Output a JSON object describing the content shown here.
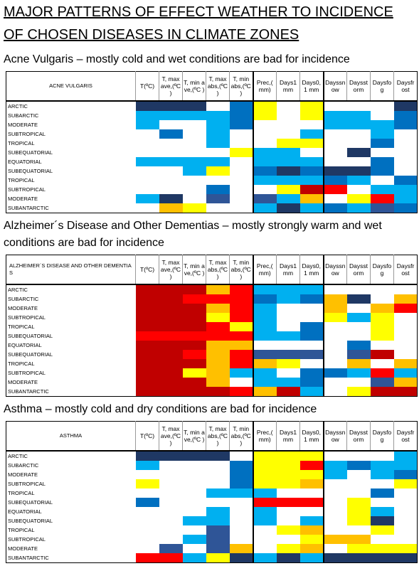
{
  "header": {
    "title_lines": [
      "MAJOR PATTERNS OF EFFECT WEATHER TO INCIDENCE",
      "OF CHOSEN DISEASES IN CLIMATE ZONES"
    ]
  },
  "columns": [
    "T(ºC)",
    "T, max ave,(ºC )",
    "T, min ave,(ºC )",
    "T, max abs,(ºC )",
    "T, min abs,(ºC )",
    "Prec,( mm)",
    "Days1 mm",
    "Days0, 1 mm",
    "Dayssn ow",
    "Daysst orm",
    "Daysfo g",
    "Daysfr ost"
  ],
  "palette": {
    "W": "#ffffff",
    "D": "#1f3864",
    "N": "#2f5597",
    "B": "#0070c0",
    "L": "#00b0f0",
    "Y": "#ffff00",
    "O": "#ffc000",
    "R": "#ff0000",
    "K": "#c00000"
  },
  "sections": [
    {
      "subtitle": "Acne Vulgaris – mostly cold and wet conditions are bad for incidence",
      "table": {
        "corner": "ACNE VULGARIS",
        "rows": [
          {
            "label": "ARCTIC",
            "cells": "DDDWBYWYWWWD"
          },
          {
            "label": "SUBARCTIC",
            "cells": "LLLLBYWYLLWB"
          },
          {
            "label": "MODERATE",
            "cells": "LWWLBWWWLLLB"
          },
          {
            "label": "SUBTROPICAL",
            "cells": "WBWLWWWLWWLW"
          },
          {
            "label": "TROPICAL",
            "cells": "WWWLWWYYWWBW"
          },
          {
            "label": "SUBEQUATORIAL",
            "cells": "WWWWYLLWWDWW"
          },
          {
            "label": "EQUATORIAL",
            "cells": "LLLLWLLLWWBW"
          },
          {
            "label": "SUBEQUATORIAL",
            "cells": "WWLYWBDBDDBW"
          },
          {
            "label": "TROPICAL",
            "cells": "WWWWWLLLBLWB"
          },
          {
            "label": "SUBTROPICAL",
            "cells": "WWWBWWYKRWLL"
          },
          {
            "label": "MODERATE",
            "cells": "LDWNWNLOWYRL"
          },
          {
            "label": "SUBANTARCTIC",
            "cells": "WOYWWLDLBLNB"
          }
        ]
      }
    },
    {
      "subtitle": "Alzheimer´s Disease and Other Dementias – mostly strongly warm and wet conditions are bad for incidence",
      "table": {
        "corner": "ALZHEIMER´S DISEASE AND OTHER DEMENTIAS",
        "rows": [
          {
            "label": "ARCTIC",
            "cells": "KKKORLLLWWWW"
          },
          {
            "label": "SUBARCTIC",
            "cells": "KKRRRBLBODWO"
          },
          {
            "label": "MODERATE",
            "cells": "KKKORLWWOWOR"
          },
          {
            "label": "SUBTROPICAL",
            "cells": "KKKYRLWWYLYW"
          },
          {
            "label": "TROPICAL",
            "cells": "KKKRYLWBWWYW"
          },
          {
            "label": "SUBEQUATORIAL",
            "cells": "RRRRRLLBWWYW"
          },
          {
            "label": "EQUATORIAL",
            "cells": "KKKOOWWWWBWW"
          },
          {
            "label": "SUBEQUATORIAL",
            "cells": "KKRORNNNWNKW"
          },
          {
            "label": "TROPICAL",
            "cells": "KKKOROYWWOWO"
          },
          {
            "label": "SUBTROPICAL",
            "cells": "KKYOLLWBBLRL"
          },
          {
            "label": "MODERATE",
            "cells": "KKKOWLLBWWNO"
          },
          {
            "label": "SUBANTARCTIC",
            "cells": "KKKKROKLWYKK"
          }
        ]
      }
    },
    {
      "subtitle": "Asthma – mostly cold and dry conditions are bad for incidence",
      "table": {
        "corner": "ASTHMA",
        "rows": [
          {
            "label": "ARCTIC",
            "cells": "DDDDWYYYWWWL"
          },
          {
            "label": "SUBARCTIC",
            "cells": "LWWWBYYRLBLL"
          },
          {
            "label": "MODERATE",
            "cells": "WWWWBYYYLWLB"
          },
          {
            "label": "SUBTROPICAL",
            "cells": "YWWWBYYOWWWY"
          },
          {
            "label": "TROPICAL",
            "cells": "WWWLLLWWWWBW"
          },
          {
            "label": "SUBEQUATORIAL",
            "cells": "BWWWWRRRWYWW"
          },
          {
            "label": "EQUATORIAL",
            "cells": "WWWLWLWWWYLW"
          },
          {
            "label": "SUBEQUATORIAL",
            "cells": "WWLLWLWLWYDW"
          },
          {
            "label": "TROPICAL",
            "cells": "WWWNWWYOWWYW"
          },
          {
            "label": "SUBTROPICAL",
            "cells": "WWLNWWWYOOWW"
          },
          {
            "label": "MODERATE",
            "cells": "WNWNOWYOWYYY"
          },
          {
            "label": "SUBANTARCTIC",
            "cells": "RRLYDLDLDDDD"
          }
        ]
      }
    }
  ]
}
